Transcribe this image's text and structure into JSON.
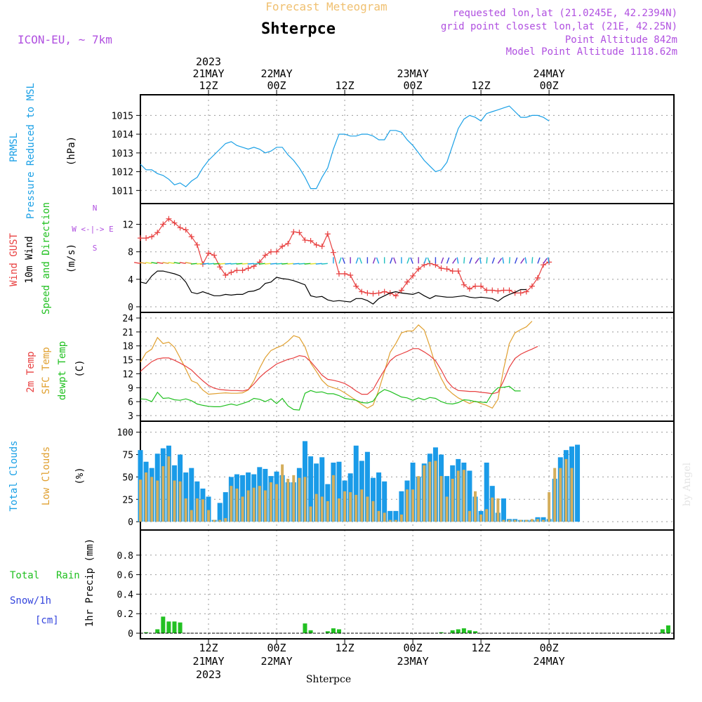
{
  "header": {
    "top_title": "Forecast Meteogram",
    "location": "Shterpce",
    "model": "ICON-EU, ~ 7km",
    "requested": "requested lon,lat (21.0245E, 42.2394N)",
    "grid_point": "grid point closest lon,lat (21E, 42.25N)",
    "point_altitude": "Point Altitude 842m",
    "model_altitude": "Model Point Altitude 1118.62m",
    "watermark": "by Angel",
    "bottom_label": "Shterpce"
  },
  "time_axis": {
    "top_ticks": [
      {
        "hour": 12,
        "lines": [
          "2023",
          "21MAY",
          "12Z"
        ]
      },
      {
        "hour": 24,
        "lines": [
          "22MAY",
          "00Z"
        ]
      },
      {
        "hour": 36,
        "lines": [
          "12Z"
        ]
      },
      {
        "hour": 48,
        "lines": [
          "23MAY",
          "00Z"
        ]
      },
      {
        "hour": 60,
        "lines": [
          "12Z"
        ]
      },
      {
        "hour": 72,
        "lines": [
          "24MAY",
          "00Z"
        ]
      }
    ],
    "bottom_ticks": [
      {
        "hour": 12,
        "lines": [
          "12Z",
          "21MAY",
          "2023"
        ]
      },
      {
        "hour": 24,
        "lines": [
          "00Z",
          "22MAY"
        ]
      },
      {
        "hour": 36,
        "lines": [
          "12Z"
        ]
      },
      {
        "hour": 48,
        "lines": [
          "00Z",
          "23MAY"
        ]
      },
      {
        "hour": 60,
        "lines": [
          "12Z"
        ]
      },
      {
        "hour": 72,
        "lines": [
          "00Z",
          "24MAY"
        ]
      }
    ]
  },
  "panel_labels": {
    "pressure": {
      "a": "PRMSL",
      "b": "Pressure Reduced to MSL",
      "unit": "(hPa)"
    },
    "wind": {
      "a": "Wind GUST",
      "b": "10m Wind",
      "c": "Speed and Direction",
      "unit": "(m/s)",
      "compass": "W <-|-> E",
      "compass_n": "N",
      "compass_s": "S"
    },
    "temp": {
      "a": "2m Temp",
      "b": "SFC Temp",
      "c": "dewpt Temp",
      "unit": "(C)"
    },
    "clouds": {
      "a": "Total Clouds",
      "b": "Low Clouds",
      "unit": "(%)"
    },
    "precip": {
      "a": "Total",
      "a2": "Rain",
      "b": "Snow/1h",
      "b2": "[cm]",
      "unit": "1hr Precip (mm)"
    }
  },
  "colors": {
    "pressure": "#1aa0e6",
    "gust": "#e84040",
    "wind": "#000000",
    "temp2m": "#e84040",
    "sfc": "#e0a030",
    "dewpt": "#20c020",
    "total_clouds": "#1a9be8",
    "low_clouds": "#d4ae5c",
    "rain": "#22c022",
    "snow": "#3344dd",
    "header_purple": "#b050e0",
    "header_orange": "#f0c070"
  },
  "chart_data": [
    {
      "type": "line",
      "name": "PRMSL",
      "x_hours_start": 0,
      "x_hours_step": 1,
      "xlim": [
        0,
        94
      ],
      "ylim": [
        1010.6,
        1015.8
      ],
      "yticks": [
        1011,
        1012,
        1013,
        1014,
        1015
      ],
      "series": [
        {
          "name": "PRMSL",
          "values": [
            1012.4,
            1012.1,
            1012.1,
            1011.9,
            1011.8,
            1011.6,
            1011.3,
            1011.4,
            1011.2,
            1011.5,
            1011.7,
            1012.2,
            1012.6,
            1012.9,
            1013.2,
            1013.5,
            1013.6,
            1013.4,
            1013.3,
            1013.2,
            1013.3,
            1013.2,
            1013.0,
            1013.1,
            1013.3,
            1013.3,
            1012.9,
            1012.6,
            1012.2,
            1011.7,
            1011.1,
            1011.1,
            1011.7,
            1012.2,
            1013.2,
            1014.0,
            1014.0,
            1013.9,
            1013.9,
            1014.0,
            1014.0,
            1013.9,
            1013.7,
            1013.7,
            1014.2,
            1014.2,
            1014.1,
            1013.7,
            1013.4,
            1013.0,
            1012.6,
            1012.3,
            1012.0,
            1012.1,
            1012.5,
            1013.4,
            1014.3,
            1014.8,
            1015.0,
            1014.9,
            1014.7,
            1015.1,
            1015.2,
            1015.3,
            1015.4,
            1015.5,
            1015.2,
            1014.9,
            1014.9,
            1015.0,
            1015.0,
            1014.9,
            1014.7
          ]
        }
      ]
    },
    {
      "type": "line",
      "name": "Wind",
      "x_hours_start": 0,
      "x_hours_step": 1,
      "xlim": [
        0,
        94
      ],
      "ylim": [
        0,
        14.2
      ],
      "yticks": [
        0,
        4,
        8,
        12
      ],
      "series": [
        {
          "name": "Wind GUST",
          "values": [
            10.0,
            10.0,
            10.2,
            10.8,
            12.0,
            12.8,
            12.2,
            11.5,
            11.2,
            10.2,
            9.0,
            6.2,
            7.8,
            7.5,
            5.8,
            4.6,
            5.0,
            5.3,
            5.3,
            5.6,
            5.9,
            6.5,
            7.5,
            8.0,
            8.0,
            8.8,
            9.2,
            10.9,
            10.8,
            9.7,
            9.6,
            9.0,
            8.8,
            10.6,
            7.9,
            4.8,
            4.8,
            4.6,
            3.0,
            2.2,
            2.0,
            1.9,
            2.0,
            2.2,
            2.0,
            1.6,
            2.4,
            3.6,
            4.5,
            5.5,
            6.1,
            6.3,
            6.1,
            5.6,
            5.5,
            5.2,
            5.2,
            3.2,
            2.6,
            3.0,
            3.0,
            2.4,
            2.4,
            2.3,
            2.4,
            2.4,
            2.0,
            2.0,
            2.2,
            3.0,
            4.2,
            6.1,
            6.5
          ]
        },
        {
          "name": "10m Wind",
          "values": [
            3.6,
            3.4,
            4.5,
            5.2,
            5.2,
            5.0,
            4.8,
            4.5,
            3.6,
            2.1,
            1.9,
            2.2,
            1.9,
            1.6,
            1.6,
            1.8,
            1.7,
            1.8,
            1.8,
            2.2,
            2.3,
            2.6,
            3.4,
            3.6,
            4.3,
            4.1,
            4.0,
            3.8,
            3.5,
            3.2,
            1.6,
            1.4,
            1.5,
            1.0,
            0.8,
            0.9,
            0.8,
            0.7,
            1.2,
            1.2,
            0.9,
            0.4,
            1.2,
            1.6,
            2.0,
            2.2,
            2.0,
            1.9,
            1.8,
            2.1,
            1.6,
            1.2,
            1.6,
            1.5,
            1.4,
            1.4,
            1.5,
            1.6,
            1.4,
            1.3,
            1.4,
            1.3,
            1.2,
            0.8,
            1.4,
            1.8,
            2.1,
            2.5,
            2.5
          ]
        }
      ]
    },
    {
      "type": "line",
      "name": "Temperature",
      "x_hours_start": 0,
      "x_hours_step": 1,
      "xlim": [
        0,
        94
      ],
      "ylim": [
        3,
        24
      ],
      "yticks": [
        3,
        6,
        9,
        12,
        15,
        18,
        21,
        24
      ],
      "series": [
        {
          "name": "2m Temp",
          "values": [
            12.5,
            13.6,
            14.6,
            15.2,
            15.4,
            15.4,
            14.9,
            14.3,
            13.6,
            12.8,
            11.6,
            10.5,
            9.5,
            8.9,
            8.6,
            8.5,
            8.4,
            8.4,
            8.3,
            8.6,
            9.8,
            11.2,
            12.3,
            13.2,
            14.1,
            14.6,
            15.1,
            15.4,
            15.9,
            15.7,
            14.6,
            13.2,
            11.7,
            10.8,
            10.6,
            10.3,
            9.9,
            9.2,
            8.3,
            7.6,
            7.6,
            8.6,
            10.8,
            12.8,
            14.8,
            15.8,
            16.3,
            16.8,
            17.4,
            17.4,
            16.7,
            15.9,
            14.8,
            12.8,
            10.5,
            9.1,
            8.4,
            8.3,
            8.2,
            8.2,
            8.0,
            7.9,
            7.7,
            8.0,
            10.5,
            13.4,
            15.3,
            16.2,
            16.8,
            17.3,
            17.9
          ]
        },
        {
          "name": "SFC Temp",
          "values": [
            14.5,
            16.5,
            17.3,
            19.8,
            18.5,
            18.8,
            17.7,
            15.4,
            13.0,
            10.5,
            10.0,
            8.5,
            7.6,
            7.7,
            7.8,
            7.9,
            7.8,
            7.8,
            7.9,
            8.5,
            10.5,
            13.2,
            15.5,
            17.0,
            17.6,
            18.1,
            19.0,
            20.2,
            19.8,
            17.8,
            14.3,
            12.5,
            10.6,
            9.4,
            9.0,
            8.6,
            7.9,
            7.1,
            6.3,
            5.4,
            4.6,
            5.3,
            8.5,
            12.5,
            16.6,
            18.5,
            20.8,
            21.2,
            21.2,
            22.5,
            21.4,
            17.9,
            13.8,
            11.0,
            8.8,
            7.7,
            6.8,
            6.2,
            5.6,
            6.1,
            5.6,
            5.2,
            4.6,
            6.5,
            13.0,
            18.5,
            20.8,
            21.5,
            22.1,
            23.3
          ]
        },
        {
          "name": "dewpt Temp",
          "values": [
            6.6,
            6.5,
            6.0,
            8.0,
            6.7,
            6.8,
            6.4,
            6.3,
            6.6,
            6.2,
            5.5,
            5.2,
            5.0,
            4.9,
            4.9,
            5.2,
            5.5,
            5.2,
            5.6,
            6.0,
            6.7,
            6.5,
            6.0,
            6.6,
            5.6,
            6.7,
            5.1,
            4.3,
            4.2,
            7.8,
            8.4,
            8.0,
            8.1,
            7.7,
            7.7,
            7.3,
            6.7,
            6.5,
            6.3,
            5.8,
            5.7,
            6.1,
            7.8,
            8.6,
            8.2,
            7.6,
            7.0,
            6.8,
            6.3,
            6.8,
            6.4,
            6.9,
            6.7,
            6.0,
            5.6,
            5.5,
            5.8,
            6.4,
            6.3,
            6.0,
            5.9,
            5.8,
            7.8,
            9.0,
            9.1,
            9.3,
            8.3,
            8.3
          ]
        }
      ]
    },
    {
      "type": "bar",
      "name": "Clouds",
      "x_hours_start": 0,
      "x_hours_step": 1,
      "xlim": [
        0,
        94
      ],
      "ylim": [
        -3,
        106
      ],
      "yticks": [
        0,
        25,
        50,
        75,
        100
      ],
      "series": [
        {
          "name": "Total Clouds",
          "values": [
            80,
            67,
            60,
            76,
            82,
            85,
            63,
            75,
            55,
            60,
            45,
            37,
            28,
            2,
            21,
            33,
            50,
            53,
            52,
            55,
            53,
            61,
            59,
            51,
            56,
            52,
            44,
            44,
            60,
            90,
            73,
            65,
            72,
            42,
            66,
            67,
            46,
            54,
            85,
            68,
            78,
            49,
            55,
            45,
            12,
            12,
            34,
            46,
            66,
            50,
            65,
            76,
            83,
            75,
            51,
            63,
            70,
            66,
            57,
            28,
            12,
            66,
            40,
            10,
            26,
            3,
            3,
            2,
            2,
            2,
            5,
            5,
            3,
            48,
            72,
            80,
            84,
            86
          ]
        },
        {
          "name": "Low Clouds",
          "values": [
            47,
            55,
            50,
            46,
            62,
            73,
            46,
            45,
            26,
            13,
            26,
            25,
            13,
            2,
            2,
            4,
            40,
            37,
            28,
            35,
            38,
            40,
            35,
            44,
            42,
            64,
            48,
            52,
            49,
            50,
            17,
            31,
            28,
            23,
            52,
            26,
            34,
            33,
            30,
            36,
            28,
            23,
            12,
            10,
            2,
            2,
            8,
            36,
            36,
            51,
            63,
            67,
            68,
            51,
            28,
            48,
            57,
            58,
            12,
            34,
            8,
            14,
            27,
            26,
            2,
            2,
            2,
            2,
            2,
            3,
            3,
            2,
            33,
            60,
            60,
            70,
            60
          ]
        }
      ]
    },
    {
      "type": "bar",
      "name": "Precipitation",
      "x_hours_start": 0,
      "x_hours_step": 1,
      "xlim": [
        0,
        94
      ],
      "ylim": [
        0,
        1.0
      ],
      "yticks": [
        0,
        0.2,
        0.4,
        0.6,
        0.8
      ],
      "series": [
        {
          "name": "Total Rain",
          "values": [
            0,
            0.01,
            0,
            0.04,
            0.17,
            0.12,
            0.12,
            0.11,
            0,
            0,
            0,
            0,
            0,
            0,
            0,
            0,
            0,
            0,
            0,
            0,
            0,
            0,
            0,
            0,
            0,
            0,
            0,
            0,
            0,
            0.1,
            0.03,
            0,
            0,
            0.02,
            0.05,
            0.04,
            0,
            0,
            0,
            0,
            0,
            0,
            0,
            0,
            0,
            0,
            0,
            0,
            0,
            0,
            0,
            0,
            0,
            0.01,
            0,
            0.03,
            0.04,
            0.05,
            0.03,
            0.02,
            0,
            0,
            0,
            0,
            0,
            0,
            0,
            0,
            0,
            0,
            0,
            0,
            0,
            0,
            0,
            0,
            0,
            0,
            0,
            0,
            0,
            0,
            0,
            0,
            0,
            0,
            0,
            0,
            0,
            0,
            0,
            0,
            0.04,
            0.08
          ]
        },
        {
          "name": "Snow/1h",
          "values": []
        }
      ]
    }
  ]
}
